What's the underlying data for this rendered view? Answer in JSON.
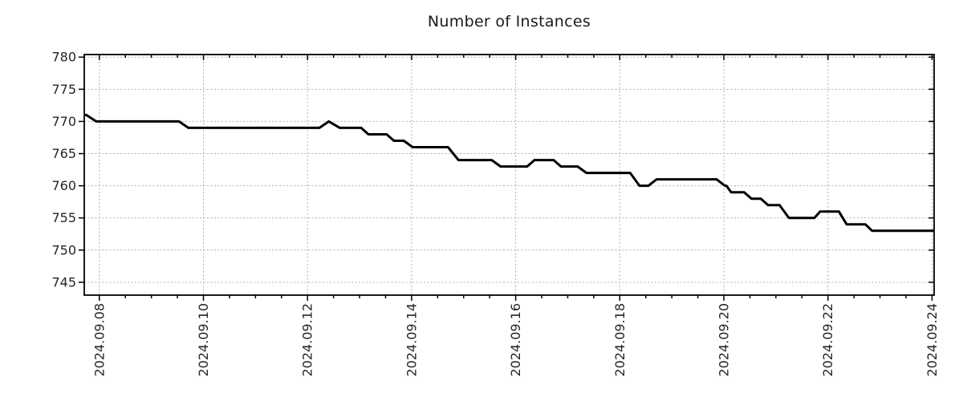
{
  "page": {
    "background": "#ffffff"
  },
  "colors": {
    "grid": "#b0b0b0",
    "axis": "#000000",
    "tick": "#000000",
    "tick_label_text": "#262626",
    "title_text": "#1a1a1a",
    "line": "#000000"
  },
  "chart_data": {
    "type": "line",
    "title": "Number of Instances",
    "xlabel": "",
    "ylabel": "",
    "grid": true,
    "legend_position": "none",
    "x_axis": {
      "unit": "days since 2024.09.08",
      "tick_labels": [
        "2024.09.08",
        "2024.09.10",
        "2024.09.12",
        "2024.09.14",
        "2024.09.16",
        "2024.09.18",
        "2024.09.20",
        "2024.09.22",
        "2024.09.24"
      ],
      "tick_days": [
        0,
        2,
        4,
        6,
        8,
        10,
        12,
        14,
        16
      ],
      "minor_step_days": 0.5,
      "lim_days": [
        -0.29,
        16.04
      ]
    },
    "y_axis": {
      "ticks": [
        745,
        750,
        755,
        760,
        765,
        770,
        775,
        780
      ],
      "lim": [
        743.0,
        780.4
      ]
    },
    "series": [
      {
        "name": "Number of Instances",
        "color": "#000000",
        "stroke_width": 3,
        "points": [
          [
            -0.29,
            771
          ],
          [
            -0.25,
            771
          ],
          [
            -0.06,
            770
          ],
          [
            1.53,
            770
          ],
          [
            1.71,
            769
          ],
          [
            4.23,
            769
          ],
          [
            4.41,
            770
          ],
          [
            4.62,
            769
          ],
          [
            5.03,
            769
          ],
          [
            5.17,
            768
          ],
          [
            5.52,
            768
          ],
          [
            5.66,
            767
          ],
          [
            5.85,
            767
          ],
          [
            6.02,
            766
          ],
          [
            6.7,
            766
          ],
          [
            6.9,
            764
          ],
          [
            7.54,
            764
          ],
          [
            7.71,
            763
          ],
          [
            8.22,
            763
          ],
          [
            8.36,
            764
          ],
          [
            8.73,
            764
          ],
          [
            8.87,
            763
          ],
          [
            9.19,
            763
          ],
          [
            9.36,
            762
          ],
          [
            10.2,
            762
          ],
          [
            10.38,
            760
          ],
          [
            10.55,
            760
          ],
          [
            10.71,
            761
          ],
          [
            11.86,
            761
          ],
          [
            12.02,
            760
          ],
          [
            12.05,
            760
          ],
          [
            12.14,
            759
          ],
          [
            12.39,
            759
          ],
          [
            12.53,
            758
          ],
          [
            12.71,
            758
          ],
          [
            12.85,
            757
          ],
          [
            13.07,
            757
          ],
          [
            13.25,
            755
          ],
          [
            13.74,
            755
          ],
          [
            13.85,
            756
          ],
          [
            14.21,
            756
          ],
          [
            14.36,
            754
          ],
          [
            14.72,
            754
          ],
          [
            14.85,
            753
          ],
          [
            16.04,
            753
          ]
        ]
      }
    ]
  }
}
